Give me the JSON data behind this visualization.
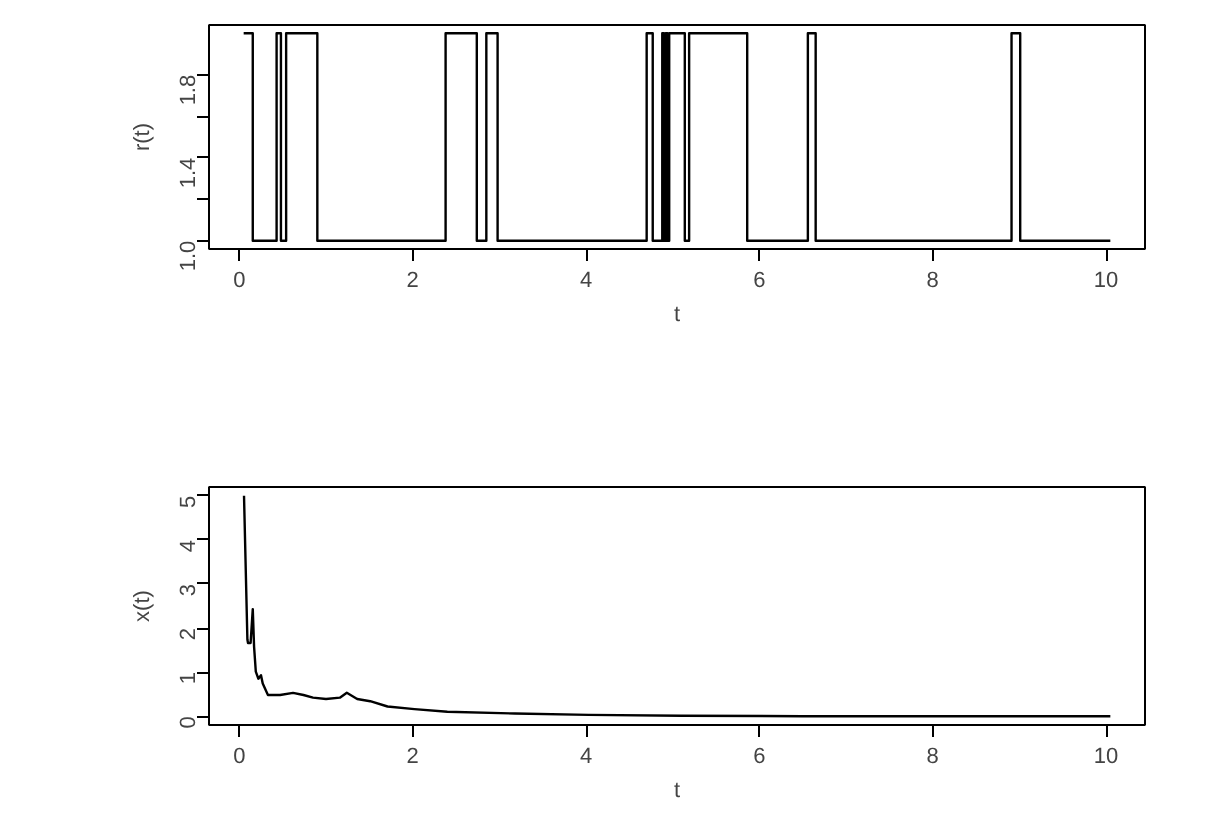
{
  "chart_data": [
    {
      "type": "step",
      "xlabel": "t",
      "ylabel": "r(t)",
      "xlim": [
        -0.35,
        10.45
      ],
      "ylim": [
        0.96,
        2.04
      ],
      "xticks": [
        0,
        2,
        4,
        6,
        8,
        10
      ],
      "yticks": [
        {
          "value": 1.0,
          "label": "1.0"
        },
        {
          "value": 1.2,
          "label": null
        },
        1.4,
        {
          "value": 1.6,
          "label": null
        },
        1.8
      ],
      "grid": false,
      "series": [
        {
          "color": "#000000",
          "x": [
            0.05,
            0.155,
            0.43,
            0.48,
            0.54,
            0.9,
            2.38,
            2.74,
            2.85,
            2.98,
            4.7,
            4.77,
            4.88,
            4.9,
            4.92,
            4.94,
            4.96,
            5.14,
            5.19,
            5.86,
            6.56,
            6.65,
            8.91,
            9.01,
            10.05
          ],
          "values": [
            2,
            1,
            2,
            1,
            2,
            1,
            2,
            1,
            2,
            1,
            2,
            1,
            2,
            1,
            2,
            1,
            2,
            1,
            2,
            1,
            2,
            1,
            2,
            1,
            1
          ]
        }
      ]
    },
    {
      "type": "line",
      "xlabel": "t",
      "ylabel": "x(t)",
      "xlim": [
        -0.35,
        10.45
      ],
      "ylim": [
        -0.2,
        5.2
      ],
      "xticks": [
        0,
        2,
        4,
        6,
        8,
        10
      ],
      "yticks": [
        0,
        1,
        2,
        3,
        4,
        5
      ],
      "grid": false,
      "series": [
        {
          "color": "#000000",
          "x": [
            0.054,
            0.093,
            0.1,
            0.13,
            0.155,
            0.17,
            0.19,
            0.22,
            0.25,
            0.27,
            0.33,
            0.47,
            0.62,
            0.74,
            0.85,
            1.0,
            1.16,
            1.24,
            1.36,
            1.51,
            1.71,
            2.02,
            2.4,
            3.18,
            4.03,
            5.1,
            6.5,
            8.0,
            10.05
          ],
          "values": [
            5.0,
            1.74,
            1.66,
            1.66,
            2.43,
            1.58,
            1.01,
            0.85,
            0.93,
            0.74,
            0.48,
            0.48,
            0.53,
            0.48,
            0.42,
            0.39,
            0.42,
            0.53,
            0.39,
            0.34,
            0.22,
            0.16,
            0.1,
            0.06,
            0.03,
            0.01,
            0.0,
            0.0,
            0.0
          ]
        }
      ]
    }
  ]
}
